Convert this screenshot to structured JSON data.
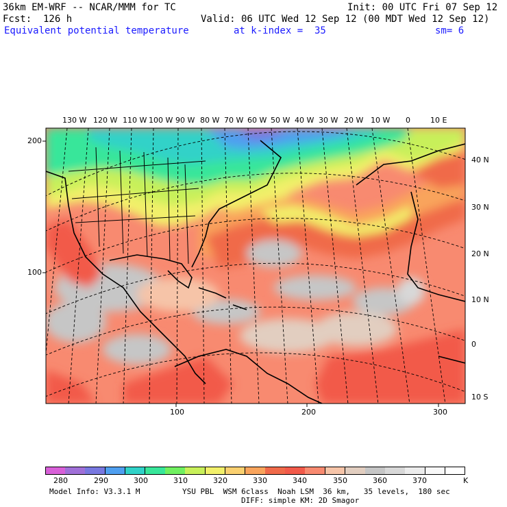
{
  "header": {
    "line1_left": "36km EM-WRF -- NCAR/MMM for TC",
    "line1_right": "Init: 00 UTC Fri 07 Sep 12",
    "line2_left": "Fcst:  126 h",
    "line2_right": "Valid: 06 UTC Wed 12 Sep 12 (00 MDT Wed 12 Sep 12)",
    "field_name": "Equivalent potential temperature",
    "level": "at k-index =  35",
    "smoothing": "sm= 6"
  },
  "map": {
    "top_longitude_labels": [
      "130 W",
      "120 W",
      "110 W",
      "100 W",
      "90 W",
      "80 W",
      "70 W",
      "60 W",
      "50 W",
      "40 W",
      "30 W",
      "20 W",
      "10 W",
      "0",
      "10 E"
    ],
    "right_latitude_labels": [
      "40 N",
      "30 N",
      "20 N",
      "10 N",
      "0",
      "10 S"
    ],
    "left_grid_labels": [
      "200",
      "100"
    ],
    "bottom_grid_labels": [
      "100",
      "200",
      "300"
    ]
  },
  "colorbar": {
    "tick_labels": [
      "280",
      "290",
      "300",
      "310",
      "320",
      "330",
      "340",
      "350",
      "360",
      "370"
    ],
    "unit": "K",
    "colors": [
      "#d860d8",
      "#a070d8",
      "#7878e0",
      "#4f9ff0",
      "#30d2c8",
      "#38e69a",
      "#70f060",
      "#c8f05a",
      "#f2f06a",
      "#fad070",
      "#f9a45c",
      "#f06a4a",
      "#f25a4a",
      "#f88a70",
      "#f6c4a8",
      "#e2cec0",
      "#c6c6c6",
      "#d8d8d8",
      "#ececec",
      "#f8f8f8",
      "#ffffff"
    ]
  },
  "footer": {
    "model_info": "Model Info: V3.3.1 M",
    "physics": "YSU PBL  WSM 6class  Noah LSM  36 km,   35 levels,  180 sec",
    "diffusion": "DIFF: simple KM: 2D Smagor"
  }
}
